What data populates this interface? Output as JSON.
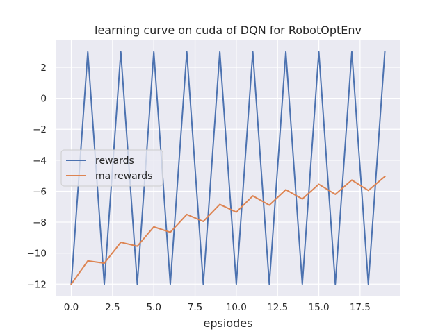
{
  "chart_data": {
    "type": "line",
    "title": "learning curve on cuda of DQN for RobotOptEnv",
    "xlabel": "epsiodes",
    "ylabel": "",
    "xlim": [
      -0.95,
      19.95
    ],
    "ylim": [
      -12.75,
      3.75
    ],
    "x_ticks": [
      0.0,
      2.5,
      5.0,
      7.5,
      10.0,
      12.5,
      15.0,
      17.5
    ],
    "x_tick_labels": [
      "0.0",
      "2.5",
      "5.0",
      "7.5",
      "10.0",
      "12.5",
      "15.0",
      "17.5"
    ],
    "y_ticks": [
      -12,
      -10,
      -8,
      -6,
      -4,
      -2,
      0,
      2
    ],
    "y_tick_labels": [
      "−12",
      "−10",
      "−8",
      "−6",
      "−4",
      "−2",
      "0",
      "2"
    ],
    "grid": true,
    "legend_position": "center-left",
    "x": [
      0,
      1,
      2,
      3,
      4,
      5,
      6,
      7,
      8,
      9,
      10,
      11,
      12,
      13,
      14,
      15,
      16,
      17,
      18,
      19
    ],
    "series": [
      {
        "name": "rewards",
        "color": "#4c72b0",
        "values": [
          -12,
          3,
          -12,
          3,
          -12,
          3,
          -12,
          3,
          -12,
          3,
          -12,
          3,
          -12,
          3,
          -12,
          3,
          -12,
          3,
          -12,
          3
        ]
      },
      {
        "name": "ma rewards",
        "color": "#dd8452",
        "values": [
          -12.0,
          -10.5,
          -10.65,
          -9.3,
          -9.55,
          -8.3,
          -8.65,
          -7.5,
          -7.95,
          -6.85,
          -7.35,
          -6.3,
          -6.9,
          -5.9,
          -6.5,
          -5.55,
          -6.2,
          -5.28,
          -5.95,
          -5.05
        ]
      }
    ]
  }
}
